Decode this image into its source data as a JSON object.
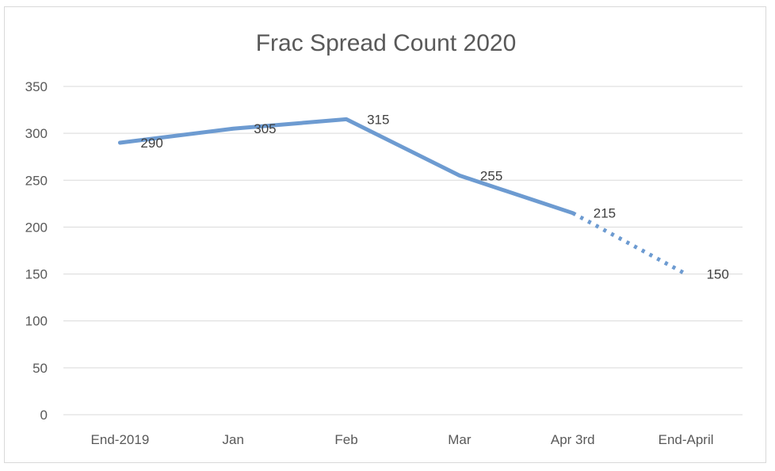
{
  "chart_data": {
    "type": "line",
    "title": "Frac Spread Count 2020",
    "categories": [
      "End-2019",
      "Jan",
      "Feb",
      "Mar",
      "Apr 3rd",
      "End-April"
    ],
    "values": [
      290,
      305,
      315,
      255,
      215,
      150
    ],
    "data_labels": [
      "290",
      "305",
      "315",
      "255",
      "215",
      "150"
    ],
    "dotted_segment_from_category": "Apr 3rd",
    "yticks": [
      "0",
      "50",
      "100",
      "150",
      "200",
      "250",
      "300",
      "350"
    ],
    "ylim": [
      0,
      350
    ],
    "grid": true,
    "legend": "none",
    "colors": {
      "line": "#6d9bd1",
      "grid": "#d9d9d9",
      "text": "#595959"
    }
  }
}
